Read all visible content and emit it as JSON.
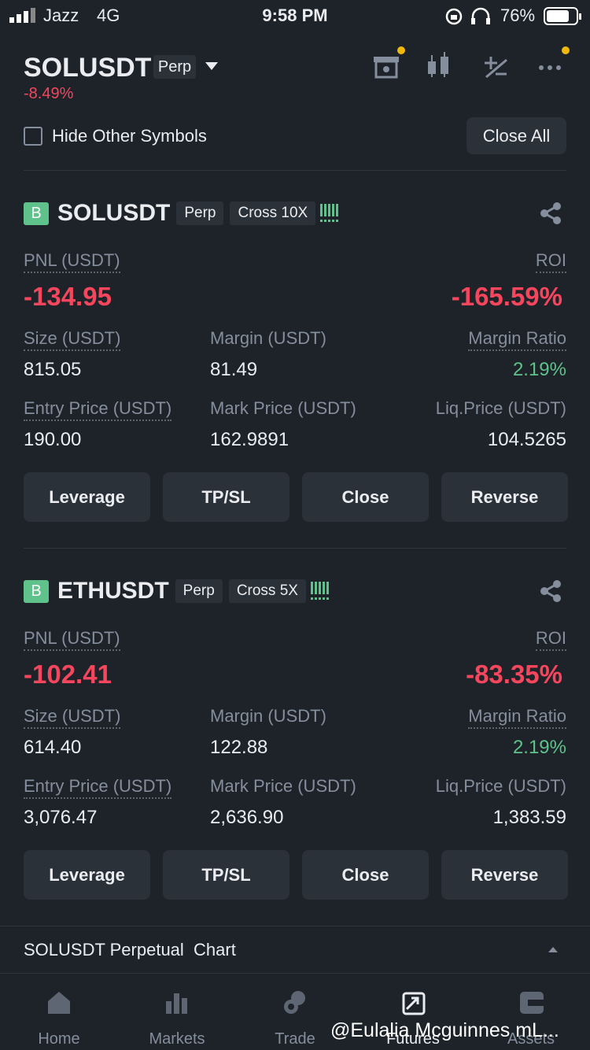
{
  "status_bar": {
    "carrier": "Jazz",
    "network": "4G",
    "time": "9:58 PM",
    "battery": "76%"
  },
  "header": {
    "symbol": "SOLUSDT",
    "tag": "Perp",
    "change": "-8.49%"
  },
  "toolbar": {
    "checkbox_label": "Hide Other Symbols",
    "close_all": "Close All"
  },
  "positions": [
    {
      "side": "B",
      "symbol": "SOLUSDT",
      "type": "Perp",
      "margin_mode": "Cross 10X",
      "pnl_label": "PNL (USDT)",
      "pnl": "-134.95",
      "roi_label": "ROI",
      "roi": "-165.59%",
      "fields": [
        {
          "label": "Size (USDT)",
          "value": "815.05"
        },
        {
          "label": "Margin (USDT)",
          "value": "81.49"
        },
        {
          "label": "Margin Ratio",
          "value": "2.19%"
        },
        {
          "label": "Entry Price (USDT)",
          "value": "190.00"
        },
        {
          "label": "Mark Price (USDT)",
          "value": "162.9891"
        },
        {
          "label": "Liq.Price (USDT)",
          "value": "104.5265"
        }
      ],
      "buttons": [
        "Leverage",
        "TP/SL",
        "Close",
        "Reverse"
      ]
    },
    {
      "side": "B",
      "symbol": "ETHUSDT",
      "type": "Perp",
      "margin_mode": "Cross 5X",
      "pnl_label": "PNL (USDT)",
      "pnl": "-102.41",
      "roi_label": "ROI",
      "roi": "-83.35%",
      "fields": [
        {
          "label": "Size (USDT)",
          "value": "614.40"
        },
        {
          "label": "Margin (USDT)",
          "value": "122.88"
        },
        {
          "label": "Margin Ratio",
          "value": "2.19%"
        },
        {
          "label": "Entry Price (USDT)",
          "value": "3,076.47"
        },
        {
          "label": "Mark Price (USDT)",
          "value": "2,636.90"
        },
        {
          "label": "Liq.Price (USDT)",
          "value": "1,383.59"
        }
      ],
      "buttons": [
        "Leverage",
        "TP/SL",
        "Close",
        "Reverse"
      ]
    }
  ],
  "chart_bar": {
    "label": "SOLUSDT Perpetual  Chart"
  },
  "nav": [
    "Home",
    "Markets",
    "Trade",
    "Futures",
    "Assets"
  ],
  "watermark": "@Eulalia Mcguinnes mL..."
}
